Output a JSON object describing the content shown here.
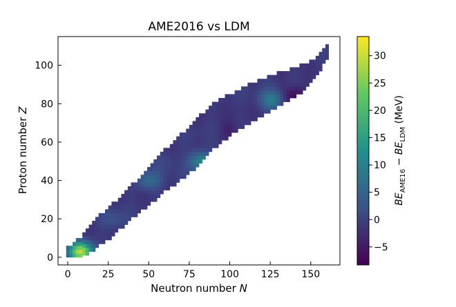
{
  "chart_data": {
    "type": "heatmap",
    "title": "AME2016 vs LDM",
    "xlabel": "Neutron number",
    "xlabel_symbol": "N",
    "ylabel": "Proton number",
    "ylabel_symbol": "Z",
    "xlim": [
      -6,
      168
    ],
    "ylim": [
      -4,
      115
    ],
    "xticks": [
      0,
      25,
      50,
      75,
      100,
      125,
      150
    ],
    "yticks": [
      0,
      20,
      40,
      60,
      80,
      100
    ],
    "colormap": "viridis",
    "colormap_stops": [
      "#440154",
      "#3b528b",
      "#21918c",
      "#5ec962",
      "#fde725"
    ],
    "colorbar": {
      "range": [
        -8.3,
        33.5
      ],
      "ticks": [
        -5,
        0,
        5,
        10,
        15,
        20,
        25,
        30
      ],
      "label_main": "BE",
      "label_sub1": "AME16",
      "label_mid": " − ",
      "label_sub2": "LDM",
      "label_unit": " (MeV)"
    },
    "region": {
      "description_key": "nuclide chart band",
      "center_line": [
        [
          0,
          2
        ],
        [
          10,
          7
        ],
        [
          20,
          15
        ],
        [
          30,
          22
        ],
        [
          40,
          30
        ],
        [
          50,
          38
        ],
        [
          60,
          46
        ],
        [
          70,
          53
        ],
        [
          80,
          61
        ],
        [
          90,
          69
        ],
        [
          100,
          75
        ],
        [
          110,
          80
        ],
        [
          120,
          84
        ],
        [
          130,
          88
        ],
        [
          140,
          92
        ],
        [
          150,
          97
        ],
        [
          160,
          108
        ]
      ],
      "half_width": [
        [
          0,
          3
        ],
        [
          20,
          7
        ],
        [
          40,
          8
        ],
        [
          60,
          10
        ],
        [
          80,
          12
        ],
        [
          100,
          10
        ],
        [
          120,
          9
        ],
        [
          140,
          7
        ],
        [
          160,
          3
        ]
      ]
    },
    "hotspots": [
      {
        "N": 8,
        "Z": 3,
        "value": 30
      },
      {
        "N": 82,
        "Z": 50,
        "value": 12
      },
      {
        "N": 126,
        "Z": 82,
        "value": 10
      },
      {
        "N": 50,
        "Z": 40,
        "value": 7
      },
      {
        "N": 28,
        "Z": 20,
        "value": 3
      },
      {
        "N": 140,
        "Z": 84,
        "value": -7
      },
      {
        "N": 100,
        "Z": 66,
        "value": -3
      },
      {
        "N": 60,
        "Z": 50,
        "value": 2
      }
    ]
  }
}
